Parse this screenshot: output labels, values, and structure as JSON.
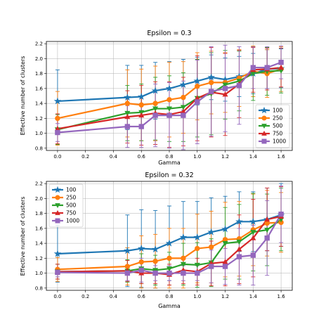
{
  "colors": {
    "100": "#1f77b4",
    "250": "#ff7f0e",
    "500": "#2ca02c",
    "750": "#d62728",
    "1000": "#9467bd"
  },
  "chart_data": [
    {
      "type": "line",
      "title": "Epsilon = 0.3",
      "xlabel": "Gamma",
      "ylabel": "Effective number of clusters",
      "xlim": [
        -0.08,
        1.68
      ],
      "ylim": [
        0.77,
        2.23
      ],
      "xticks": [
        "0.0",
        "0.2",
        "0.4",
        "0.6",
        "0.8",
        "1.0",
        "1.2",
        "1.4",
        "1.6"
      ],
      "yticks": [
        "0.8",
        "1.0",
        "1.2",
        "1.4",
        "1.6",
        "1.8",
        "2.0",
        "2.2"
      ],
      "legend": "lower-right",
      "grid": true,
      "x": [
        0.0,
        0.5,
        0.6,
        0.7,
        0.8,
        0.9,
        1.0,
        1.1,
        1.2,
        1.3,
        1.4,
        1.5,
        1.6
      ],
      "series": [
        {
          "name": "100",
          "marker": "star",
          "values": [
            1.43,
            1.48,
            1.49,
            1.57,
            1.6,
            1.65,
            1.7,
            1.75,
            1.72,
            1.76,
            1.8,
            1.86,
            1.87
          ],
          "err": [
            0.42,
            0.43,
            0.42,
            0.38,
            0.36,
            0.34,
            0.32,
            0.3,
            0.29,
            0.27,
            0.27,
            0.26,
            0.26
          ]
        },
        {
          "name": "250",
          "marker": "circle",
          "values": [
            1.2,
            1.4,
            1.38,
            1.4,
            1.45,
            1.48,
            1.63,
            1.68,
            1.68,
            1.74,
            1.83,
            1.8,
            1.86
          ],
          "err": [
            0.36,
            0.45,
            0.48,
            0.5,
            0.5,
            0.48,
            0.45,
            0.42,
            0.4,
            0.38,
            0.34,
            0.32,
            0.3
          ]
        },
        {
          "name": "500",
          "marker": "triangle",
          "values": [
            1.05,
            1.27,
            1.28,
            1.33,
            1.33,
            1.35,
            1.47,
            1.53,
            1.65,
            1.7,
            1.8,
            1.83,
            1.84
          ],
          "err": [
            0.2,
            0.37,
            0.38,
            0.42,
            0.44,
            0.46,
            0.52,
            0.55,
            0.46,
            0.4,
            0.36,
            0.32,
            0.3
          ]
        },
        {
          "name": "750",
          "marker": "triangle-up",
          "values": [
            1.06,
            1.22,
            1.24,
            1.27,
            1.25,
            1.29,
            1.47,
            1.55,
            1.52,
            1.66,
            1.85,
            1.86,
            1.88
          ],
          "err": [
            0.2,
            0.35,
            0.4,
            0.42,
            0.44,
            0.46,
            0.57,
            0.6,
            0.55,
            0.45,
            0.3,
            0.28,
            0.26
          ]
        },
        {
          "name": "1000",
          "marker": "square",
          "values": [
            1.01,
            1.09,
            1.09,
            1.24,
            1.24,
            1.24,
            1.42,
            1.56,
            1.6,
            1.64,
            1.88,
            1.88,
            1.95
          ],
          "err": [
            0.12,
            0.28,
            0.28,
            0.42,
            0.44,
            0.46,
            0.56,
            0.6,
            0.58,
            0.52,
            0.28,
            0.28,
            0.22
          ]
        }
      ]
    },
    {
      "type": "line",
      "title": "Epsilon = 0.32",
      "xlabel": "Gamma",
      "ylabel": "Effective number of clusters",
      "xlim": [
        -0.08,
        1.68
      ],
      "ylim": [
        0.77,
        2.23
      ],
      "xticks": [
        "0.0",
        "0.2",
        "0.4",
        "0.6",
        "0.8",
        "1.0",
        "1.2",
        "1.4",
        "1.6"
      ],
      "yticks": [
        "0.8",
        "1.0",
        "1.2",
        "1.4",
        "1.6",
        "1.8",
        "2.0",
        "2.2"
      ],
      "legend": "upper-left",
      "grid": true,
      "x": [
        0.0,
        0.5,
        0.6,
        0.7,
        0.8,
        0.9,
        1.0,
        1.1,
        1.2,
        1.3,
        1.4,
        1.5,
        1.6
      ],
      "series": [
        {
          "name": "100",
          "marker": "star",
          "values": [
            1.26,
            1.3,
            1.33,
            1.32,
            1.4,
            1.48,
            1.48,
            1.55,
            1.59,
            1.69,
            1.69,
            1.72,
            1.78
          ],
          "err": [
            0.38,
            0.48,
            0.52,
            0.52,
            0.5,
            0.48,
            0.48,
            0.46,
            0.44,
            0.4,
            0.4,
            0.42,
            0.42
          ]
        },
        {
          "name": "250",
          "marker": "circle",
          "values": [
            1.05,
            1.09,
            1.15,
            1.16,
            1.2,
            1.2,
            1.33,
            1.35,
            1.45,
            1.46,
            1.58,
            1.67,
            1.68
          ],
          "err": [
            0.16,
            0.25,
            0.35,
            0.36,
            0.4,
            0.4,
            0.46,
            0.48,
            0.5,
            0.5,
            0.48,
            0.44,
            0.4
          ]
        },
        {
          "name": "500",
          "marker": "triangle",
          "values": [
            1.02,
            1.03,
            1.06,
            1.04,
            1.06,
            1.12,
            1.11,
            1.14,
            1.4,
            1.42,
            1.55,
            1.58,
            1.72
          ],
          "err": [
            0.1,
            0.15,
            0.2,
            0.2,
            0.22,
            0.28,
            0.3,
            0.32,
            0.48,
            0.5,
            0.52,
            0.48,
            0.42
          ]
        },
        {
          "name": "750",
          "marker": "triangle-up",
          "values": [
            1.02,
            1.03,
            1.0,
            1.0,
            0.98,
            1.04,
            1.02,
            1.13,
            1.15,
            1.32,
            1.47,
            1.72,
            1.76
          ],
          "err": [
            0.1,
            0.14,
            0.14,
            0.14,
            0.14,
            0.18,
            0.18,
            0.3,
            0.32,
            0.46,
            0.52,
            0.42,
            0.4
          ]
        },
        {
          "name": "1000",
          "marker": "square",
          "values": [
            1.01,
            1.0,
            1.04,
            1.0,
            1.0,
            1.0,
            1.0,
            1.09,
            1.09,
            1.22,
            1.24,
            1.47,
            1.79
          ],
          "err": [
            0.06,
            0.1,
            0.16,
            0.1,
            0.1,
            0.1,
            0.1,
            0.22,
            0.24,
            0.38,
            0.4,
            0.5,
            0.38
          ]
        }
      ]
    }
  ]
}
